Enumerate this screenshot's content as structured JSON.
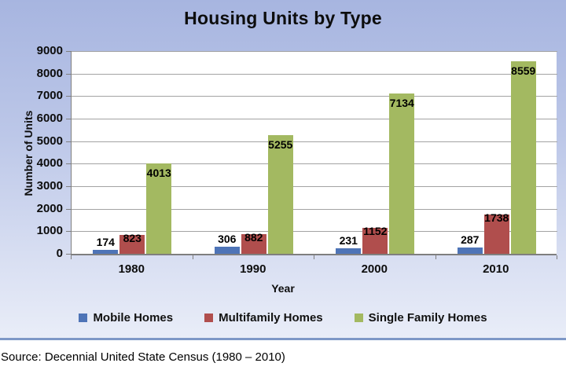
{
  "title": "Housing Units by Type",
  "source": "Source: Decennial United State Census (1980 – 2010)",
  "chart_data": {
    "type": "bar",
    "title": "Housing Units by Type",
    "xlabel": "Year",
    "ylabel": "Number of Units",
    "categories": [
      "1980",
      "1990",
      "2000",
      "2010"
    ],
    "series": [
      {
        "name": "Mobile Homes",
        "color": "#4e74b7",
        "values": [
          174,
          306,
          231,
          287
        ],
        "label_position": "outside"
      },
      {
        "name": "Multifamily Homes",
        "color": "#b04e4d",
        "values": [
          823,
          882,
          1152,
          1738
        ],
        "label_position": "straddle"
      },
      {
        "name": "Single Family Homes",
        "color": "#a3b961",
        "values": [
          4013,
          5255,
          7134,
          8559
        ],
        "label_position": "inside"
      }
    ],
    "ylim": [
      0,
      9000
    ],
    "ytick_step": 1000,
    "y_tick_labels": [
      "0",
      "1000",
      "2000",
      "3000",
      "4000",
      "5000",
      "6000",
      "7000",
      "8000",
      "9000"
    ],
    "grid": true,
    "data_labels": true,
    "legend_position": "bottom",
    "colors": {
      "plot_background": "#ffffff",
      "gridline": "#a3a3a3",
      "axis_line": "#7f7f7f",
      "canvas_gradient_top": "#a7b5e0",
      "canvas_gradient_bottom": "#e9edf8",
      "canvas_border_bottom": "#7e98c7",
      "text": "#0d0d0d"
    }
  }
}
